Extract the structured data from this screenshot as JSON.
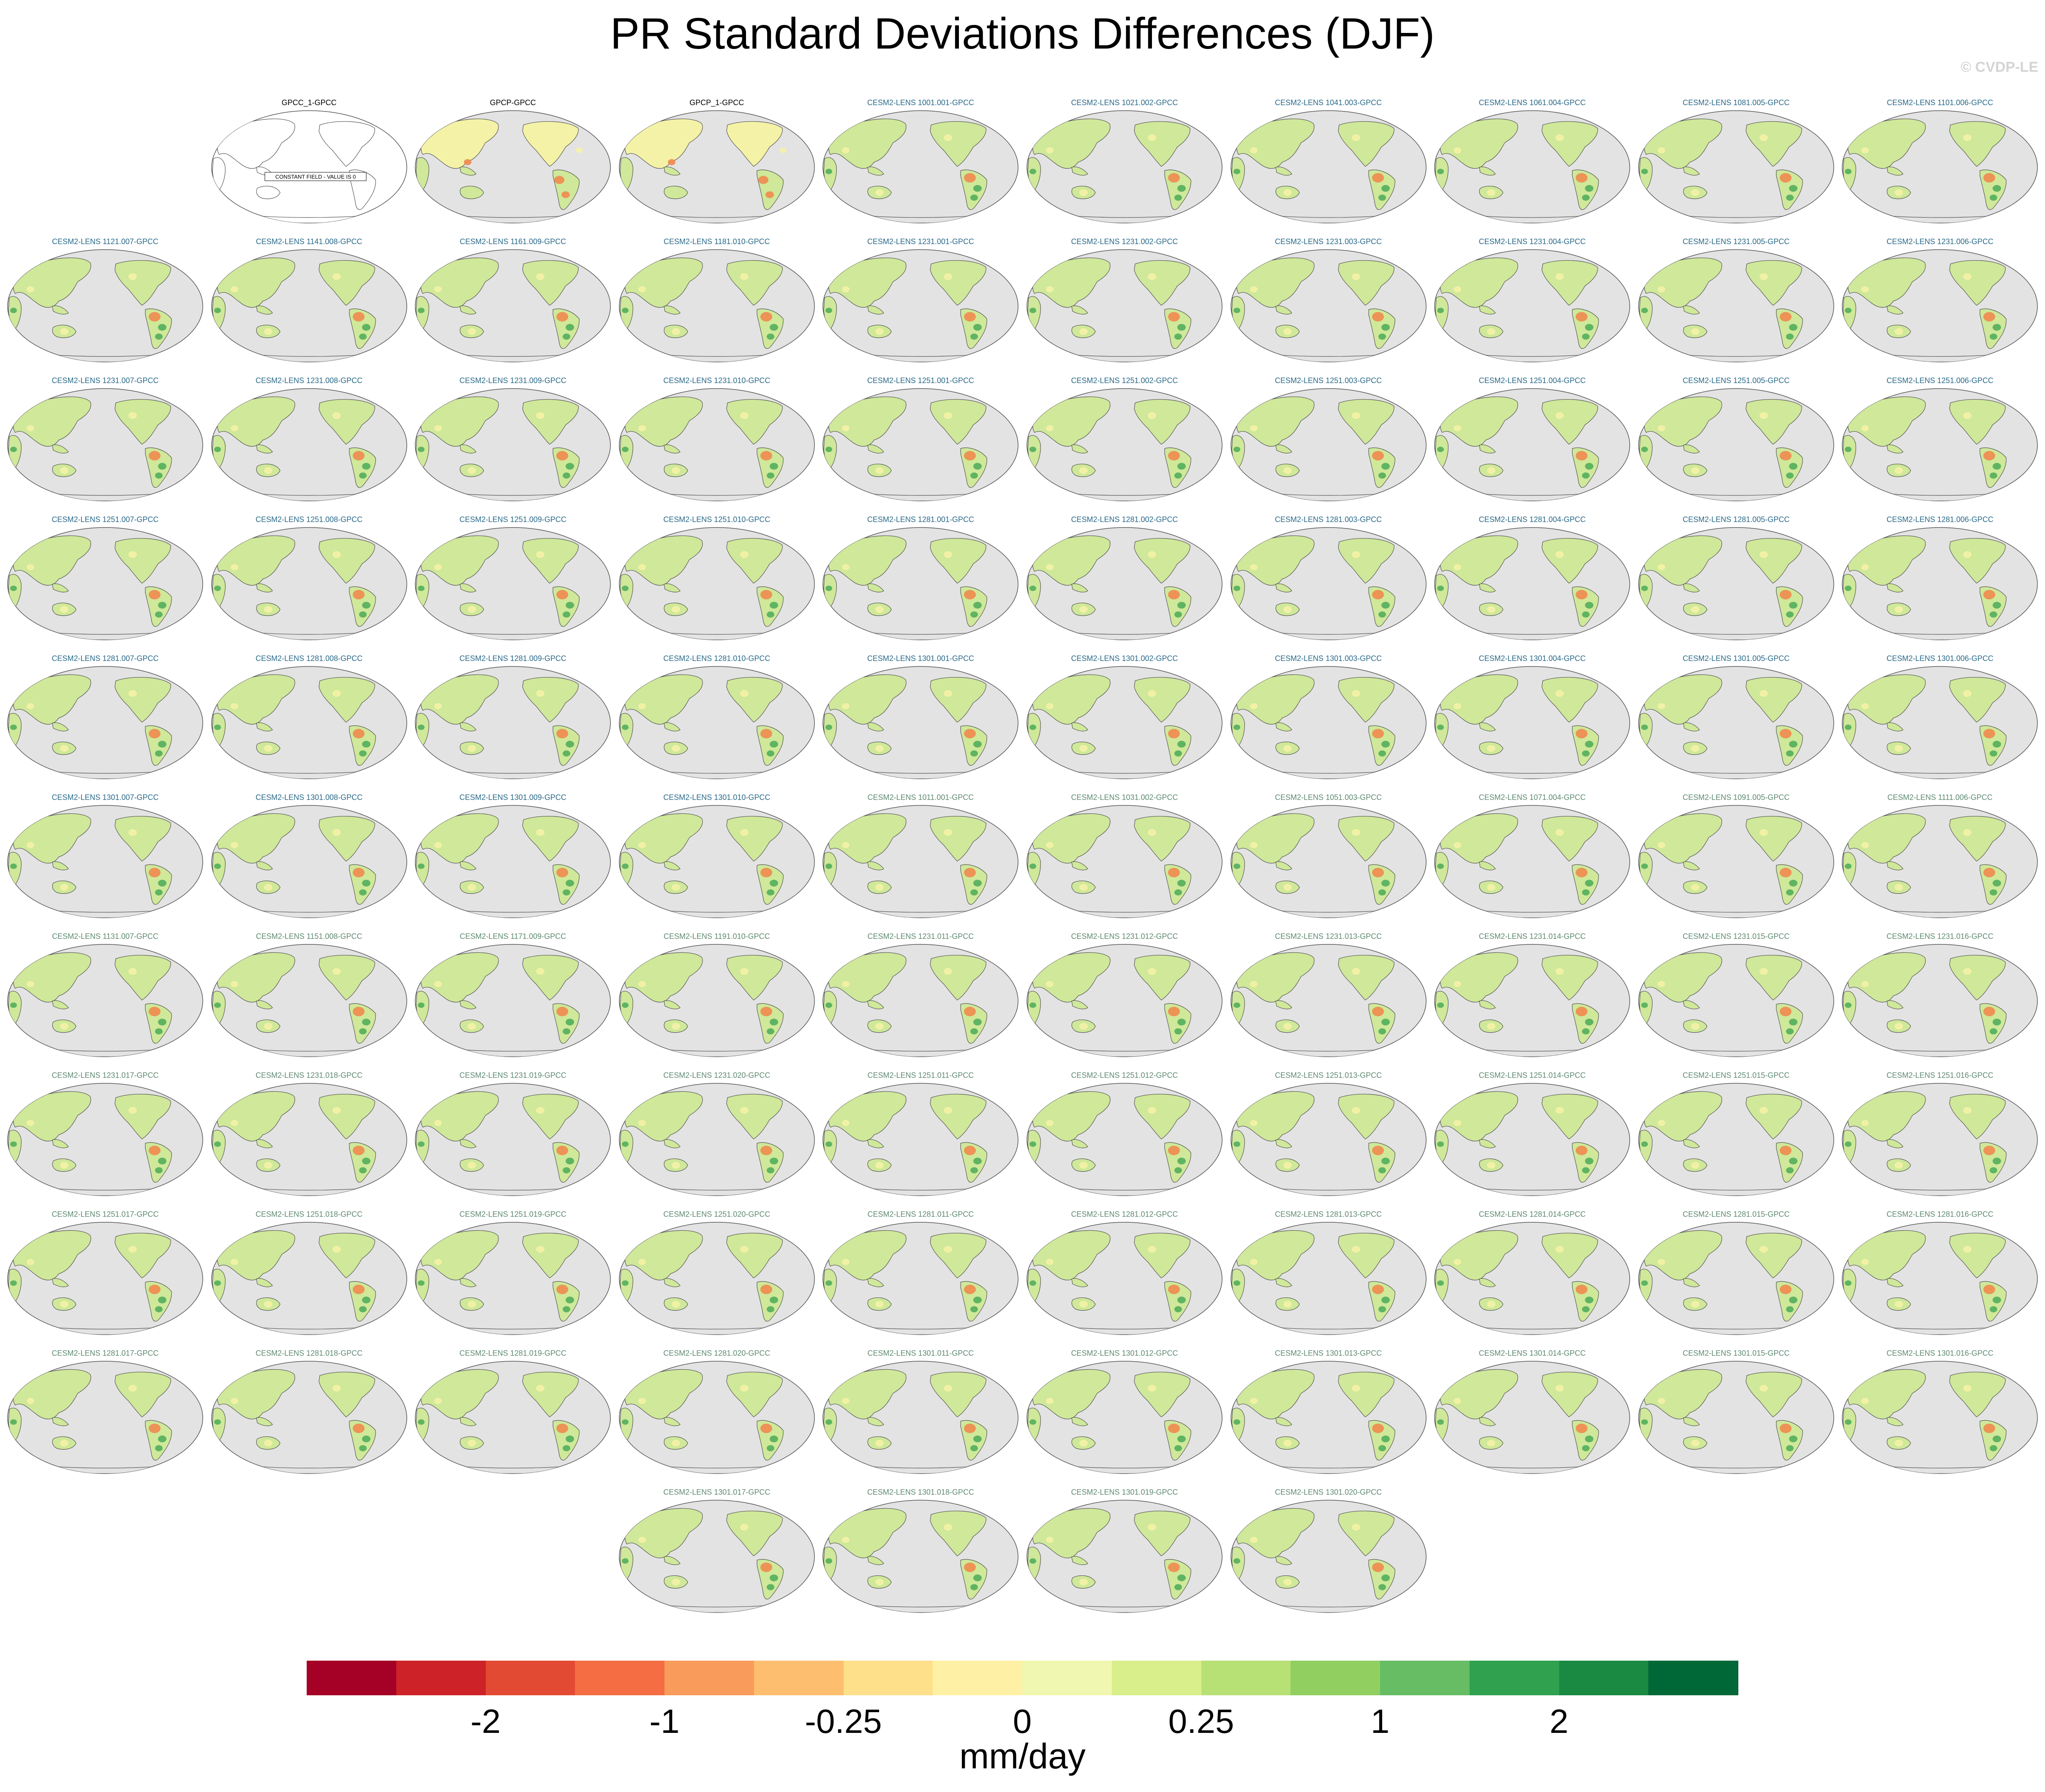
{
  "title": "PR Standard Deviations Differences (DJF)",
  "watermark": "© CVDP-LE",
  "units": "mm/day",
  "colorbar": {
    "colors": [
      "#a50026",
      "#cc2228",
      "#e34a33",
      "#f46d43",
      "#f89b5b",
      "#fdbf6f",
      "#fee08b",
      "#fef1a5",
      "#f0f7b0",
      "#d9ef8b",
      "#b7e075",
      "#91cf60",
      "#66bd63",
      "#2fa14f",
      "#1a8a42",
      "#006837"
    ],
    "tick_labels": [
      {
        "text": "-2",
        "boundary": 2
      },
      {
        "text": "-1",
        "boundary": 4
      },
      {
        "text": "-0.25",
        "boundary": 6
      },
      {
        "text": "0",
        "boundary": 8
      },
      {
        "text": "0.25",
        "boundary": 10
      },
      {
        "text": "1",
        "boundary": 12
      },
      {
        "text": "2",
        "boundary": 14
      }
    ]
  },
  "colors": {
    "ocean": "#e3e3e3",
    "outline": "#555555",
    "land_green": "#cfe89a",
    "land_yellow": "#f4f2a6",
    "dark_green": "#52ae5c",
    "red": "#f0894f",
    "obs_title": "#000000",
    "first_set_title": "#2a6a8a",
    "second_set_title": "#5f8a72"
  },
  "panels": [
    {
      "title": "GPCC_1-GPCC",
      "style": "constant",
      "note": "CONSTANT FIELD - VALUE IS 0"
    },
    {
      "title": "GPCP-GPCC",
      "style": "obs"
    },
    {
      "title": "GPCP_1-GPCC",
      "style": "obs"
    },
    {
      "title": "CESM2-LENS 1001.001-GPCC",
      "style": "m1"
    },
    {
      "title": "CESM2-LENS 1021.002-GPCC",
      "style": "m1"
    },
    {
      "title": "CESM2-LENS 1041.003-GPCC",
      "style": "m1"
    },
    {
      "title": "CESM2-LENS 1061.004-GPCC",
      "style": "m1"
    },
    {
      "title": "CESM2-LENS 1081.005-GPCC",
      "style": "m1"
    },
    {
      "title": "CESM2-LENS 1101.006-GPCC",
      "style": "m1"
    },
    {
      "title": "CESM2-LENS 1121.007-GPCC",
      "style": "m1"
    },
    {
      "title": "CESM2-LENS 1141.008-GPCC",
      "style": "m1"
    },
    {
      "title": "CESM2-LENS 1161.009-GPCC",
      "style": "m1"
    },
    {
      "title": "CESM2-LENS 1181.010-GPCC",
      "style": "m1"
    },
    {
      "title": "CESM2-LENS 1231.001-GPCC",
      "style": "m1"
    },
    {
      "title": "CESM2-LENS 1231.002-GPCC",
      "style": "m1"
    },
    {
      "title": "CESM2-LENS 1231.003-GPCC",
      "style": "m1"
    },
    {
      "title": "CESM2-LENS 1231.004-GPCC",
      "style": "m1"
    },
    {
      "title": "CESM2-LENS 1231.005-GPCC",
      "style": "m1"
    },
    {
      "title": "CESM2-LENS 1231.006-GPCC",
      "style": "m1"
    },
    {
      "title": "CESM2-LENS 1231.007-GPCC",
      "style": "m1"
    },
    {
      "title": "CESM2-LENS 1231.008-GPCC",
      "style": "m1"
    },
    {
      "title": "CESM2-LENS 1231.009-GPCC",
      "style": "m1"
    },
    {
      "title": "CESM2-LENS 1231.010-GPCC",
      "style": "m1"
    },
    {
      "title": "CESM2-LENS 1251.001-GPCC",
      "style": "m1"
    },
    {
      "title": "CESM2-LENS 1251.002-GPCC",
      "style": "m1"
    },
    {
      "title": "CESM2-LENS 1251.003-GPCC",
      "style": "m1"
    },
    {
      "title": "CESM2-LENS 1251.004-GPCC",
      "style": "m1"
    },
    {
      "title": "CESM2-LENS 1251.005-GPCC",
      "style": "m1"
    },
    {
      "title": "CESM2-LENS 1251.006-GPCC",
      "style": "m1"
    },
    {
      "title": "CESM2-LENS 1251.007-GPCC",
      "style": "m1"
    },
    {
      "title": "CESM2-LENS 1251.008-GPCC",
      "style": "m1"
    },
    {
      "title": "CESM2-LENS 1251.009-GPCC",
      "style": "m1"
    },
    {
      "title": "CESM2-LENS 1251.010-GPCC",
      "style": "m1"
    },
    {
      "title": "CESM2-LENS 1281.001-GPCC",
      "style": "m1"
    },
    {
      "title": "CESM2-LENS 1281.002-GPCC",
      "style": "m1"
    },
    {
      "title": "CESM2-LENS 1281.003-GPCC",
      "style": "m1"
    },
    {
      "title": "CESM2-LENS 1281.004-GPCC",
      "style": "m1"
    },
    {
      "title": "CESM2-LENS 1281.005-GPCC",
      "style": "m1"
    },
    {
      "title": "CESM2-LENS 1281.006-GPCC",
      "style": "m1"
    },
    {
      "title": "CESM2-LENS 1281.007-GPCC",
      "style": "m1"
    },
    {
      "title": "CESM2-LENS 1281.008-GPCC",
      "style": "m1"
    },
    {
      "title": "CESM2-LENS 1281.009-GPCC",
      "style": "m1"
    },
    {
      "title": "CESM2-LENS 1281.010-GPCC",
      "style": "m1"
    },
    {
      "title": "CESM2-LENS 1301.001-GPCC",
      "style": "m1"
    },
    {
      "title": "CESM2-LENS 1301.002-GPCC",
      "style": "m1"
    },
    {
      "title": "CESM2-LENS 1301.003-GPCC",
      "style": "m1"
    },
    {
      "title": "CESM2-LENS 1301.004-GPCC",
      "style": "m1"
    },
    {
      "title": "CESM2-LENS 1301.005-GPCC",
      "style": "m1"
    },
    {
      "title": "CESM2-LENS 1301.006-GPCC",
      "style": "m1"
    },
    {
      "title": "CESM2-LENS 1301.007-GPCC",
      "style": "m1"
    },
    {
      "title": "CESM2-LENS 1301.008-GPCC",
      "style": "m1"
    },
    {
      "title": "CESM2-LENS 1301.009-GPCC",
      "style": "m1"
    },
    {
      "title": "CESM2-LENS 1301.010-GPCC",
      "style": "m1"
    },
    {
      "title": "CESM2-LENS 1011.001-GPCC",
      "style": "m2"
    },
    {
      "title": "CESM2-LENS 1031.002-GPCC",
      "style": "m2"
    },
    {
      "title": "CESM2-LENS 1051.003-GPCC",
      "style": "m2"
    },
    {
      "title": "CESM2-LENS 1071.004-GPCC",
      "style": "m2"
    },
    {
      "title": "CESM2-LENS 1091.005-GPCC",
      "style": "m2"
    },
    {
      "title": "CESM2-LENS 1111.006-GPCC",
      "style": "m2"
    },
    {
      "title": "CESM2-LENS 1131.007-GPCC",
      "style": "m2"
    },
    {
      "title": "CESM2-LENS 1151.008-GPCC",
      "style": "m2"
    },
    {
      "title": "CESM2-LENS 1171.009-GPCC",
      "style": "m2"
    },
    {
      "title": "CESM2-LENS 1191.010-GPCC",
      "style": "m2"
    },
    {
      "title": "CESM2-LENS 1231.011-GPCC",
      "style": "m2"
    },
    {
      "title": "CESM2-LENS 1231.012-GPCC",
      "style": "m2"
    },
    {
      "title": "CESM2-LENS 1231.013-GPCC",
      "style": "m2"
    },
    {
      "title": "CESM2-LENS 1231.014-GPCC",
      "style": "m2"
    },
    {
      "title": "CESM2-LENS 1231.015-GPCC",
      "style": "m2"
    },
    {
      "title": "CESM2-LENS 1231.016-GPCC",
      "style": "m2"
    },
    {
      "title": "CESM2-LENS 1231.017-GPCC",
      "style": "m2"
    },
    {
      "title": "CESM2-LENS 1231.018-GPCC",
      "style": "m2"
    },
    {
      "title": "CESM2-LENS 1231.019-GPCC",
      "style": "m2"
    },
    {
      "title": "CESM2-LENS 1231.020-GPCC",
      "style": "m2"
    },
    {
      "title": "CESM2-LENS 1251.011-GPCC",
      "style": "m2"
    },
    {
      "title": "CESM2-LENS 1251.012-GPCC",
      "style": "m2"
    },
    {
      "title": "CESM2-LENS 1251.013-GPCC",
      "style": "m2"
    },
    {
      "title": "CESM2-LENS 1251.014-GPCC",
      "style": "m2"
    },
    {
      "title": "CESM2-LENS 1251.015-GPCC",
      "style": "m2"
    },
    {
      "title": "CESM2-LENS 1251.016-GPCC",
      "style": "m2"
    },
    {
      "title": "CESM2-LENS 1251.017-GPCC",
      "style": "m2"
    },
    {
      "title": "CESM2-LENS 1251.018-GPCC",
      "style": "m2"
    },
    {
      "title": "CESM2-LENS 1251.019-GPCC",
      "style": "m2"
    },
    {
      "title": "CESM2-LENS 1251.020-GPCC",
      "style": "m2"
    },
    {
      "title": "CESM2-LENS 1281.011-GPCC",
      "style": "m2"
    },
    {
      "title": "CESM2-LENS 1281.012-GPCC",
      "style": "m2"
    },
    {
      "title": "CESM2-LENS 1281.013-GPCC",
      "style": "m2"
    },
    {
      "title": "CESM2-LENS 1281.014-GPCC",
      "style": "m2"
    },
    {
      "title": "CESM2-LENS 1281.015-GPCC",
      "style": "m2"
    },
    {
      "title": "CESM2-LENS 1281.016-GPCC",
      "style": "m2"
    },
    {
      "title": "CESM2-LENS 1281.017-GPCC",
      "style": "m2"
    },
    {
      "title": "CESM2-LENS 1281.018-GPCC",
      "style": "m2"
    },
    {
      "title": "CESM2-LENS 1281.019-GPCC",
      "style": "m2"
    },
    {
      "title": "CESM2-LENS 1281.020-GPCC",
      "style": "m2"
    },
    {
      "title": "CESM2-LENS 1301.011-GPCC",
      "style": "m2"
    },
    {
      "title": "CESM2-LENS 1301.012-GPCC",
      "style": "m2"
    },
    {
      "title": "CESM2-LENS 1301.013-GPCC",
      "style": "m2"
    },
    {
      "title": "CESM2-LENS 1301.014-GPCC",
      "style": "m2"
    },
    {
      "title": "CESM2-LENS 1301.015-GPCC",
      "style": "m2"
    },
    {
      "title": "CESM2-LENS 1301.016-GPCC",
      "style": "m2"
    },
    {
      "title": "CESM2-LENS 1301.017-GPCC",
      "style": "m2"
    },
    {
      "title": "CESM2-LENS 1301.018-GPCC",
      "style": "m2"
    },
    {
      "title": "CESM2-LENS 1301.019-GPCC",
      "style": "m2"
    },
    {
      "title": "CESM2-LENS 1301.020-GPCC",
      "style": "m2"
    }
  ]
}
